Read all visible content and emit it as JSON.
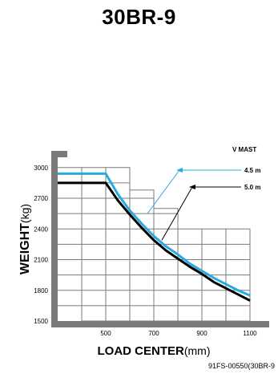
{
  "page": {
    "title": "30BR-9",
    "reference": "91FS-00550(30BR-9"
  },
  "chart_data": {
    "type": "line",
    "xlabel": "LOAD CENTER",
    "xlabel_unit": "(mm)",
    "ylabel": "WEIGHT",
    "ylabel_unit": "(kg)",
    "xlim": [
      300,
      1100
    ],
    "ylim": [
      1500,
      3100
    ],
    "x_ticks": [
      500,
      700,
      900,
      1100
    ],
    "y_ticks": [
      1500,
      1800,
      2100,
      2400,
      2700,
      3000
    ],
    "grid": true,
    "legend_title": "V MAST",
    "colors": {
      "4.5 m": "#29abe2",
      "5.0 m": "#000000",
      "axis": "#7a7a7a",
      "grid": "#7a7a7a"
    },
    "series": [
      {
        "name": "4.5 m",
        "x": [
          300,
          500,
          550,
          600,
          650,
          700,
          750,
          800,
          850,
          900,
          950,
          1000,
          1050,
          1100
        ],
        "y": [
          2940,
          2940,
          2740,
          2580,
          2450,
          2330,
          2230,
          2150,
          2060,
          1990,
          1920,
          1860,
          1800,
          1750
        ]
      },
      {
        "name": "5.0 m",
        "x": [
          300,
          500,
          550,
          600,
          650,
          700,
          750,
          800,
          850,
          900,
          950,
          1000,
          1050,
          1100
        ],
        "y": [
          2850,
          2850,
          2680,
          2540,
          2410,
          2290,
          2190,
          2110,
          2030,
          1960,
          1880,
          1820,
          1760,
          1700
        ]
      }
    ],
    "staircase_tops": [
      3000,
      3000,
      2780,
      2600,
      2400,
      2400,
      2400
    ]
  }
}
